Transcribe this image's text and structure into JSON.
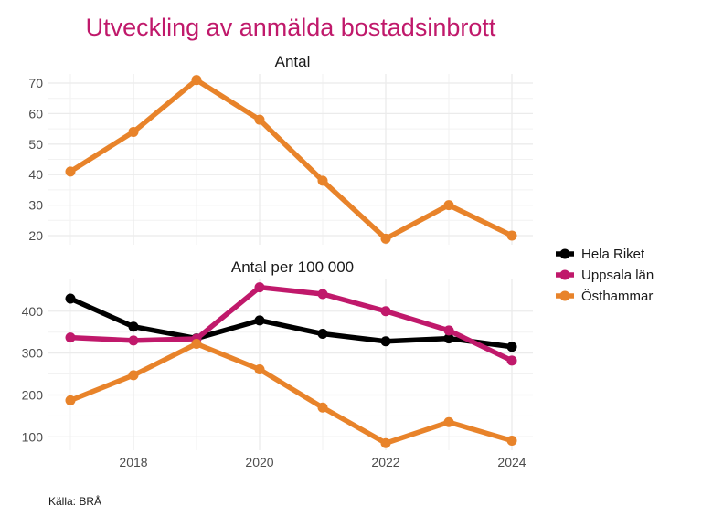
{
  "chart_data": [
    {
      "type": "line",
      "title": "Utveckling av anmälda bostadsinbrott",
      "panel_title": "Antal",
      "x": [
        2017,
        2018,
        2019,
        2020,
        2021,
        2022,
        2023,
        2024
      ],
      "x_ticks": [
        2018,
        2020,
        2022,
        2024
      ],
      "y_ticks": [
        20,
        30,
        40,
        50,
        60,
        70
      ],
      "ylim": [
        17,
        73
      ],
      "grid": true,
      "series": [
        {
          "name": "Östhammar",
          "color": "#e8832a",
          "values": [
            41,
            54,
            71,
            58,
            38,
            19,
            30,
            20
          ]
        }
      ]
    },
    {
      "type": "line",
      "panel_title": "Antal per 100 000",
      "x": [
        2017,
        2018,
        2019,
        2020,
        2021,
        2022,
        2023,
        2024
      ],
      "x_ticks": [
        2018,
        2020,
        2022,
        2024
      ],
      "y_ticks": [
        100,
        200,
        300,
        400
      ],
      "ylim": [
        68,
        478
      ],
      "grid": true,
      "legend_position": "right",
      "series": [
        {
          "name": "Hela Riket",
          "color": "#000000",
          "values": [
            430,
            363,
            335,
            378,
            346,
            328,
            335,
            315
          ]
        },
        {
          "name": "Uppsala län",
          "color": "#c0196b",
          "values": [
            337,
            330,
            334,
            457,
            441,
            400,
            354,
            282
          ]
        },
        {
          "name": "Östhammar",
          "color": "#e8832a",
          "values": [
            187,
            247,
            322,
            261,
            170,
            85,
            135,
            91
          ]
        }
      ]
    }
  ],
  "legend": [
    {
      "name": "Hela Riket",
      "color": "#000000"
    },
    {
      "name": "Uppsala län",
      "color": "#c0196b"
    },
    {
      "name": "Östhammar",
      "color": "#e8832a"
    }
  ],
  "caption": "Källa: BRÅ"
}
